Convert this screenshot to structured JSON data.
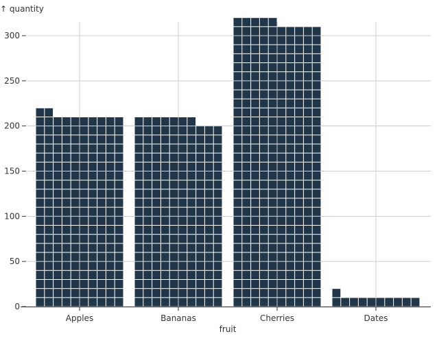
{
  "chart_data": {
    "type": "waffle",
    "categories": [
      "Apples",
      "Bananas",
      "Cherries",
      "Dates"
    ],
    "values": [
      212,
      207,
      315,
      11
    ],
    "xlabel": "fruit",
    "ylabel": "↑ quantity",
    "ylim": [
      0,
      300
    ],
    "yticks": [
      0,
      50,
      100,
      150,
      200,
      250,
      300
    ],
    "units_per_row": 10,
    "grid": true,
    "color": "#22364a"
  }
}
